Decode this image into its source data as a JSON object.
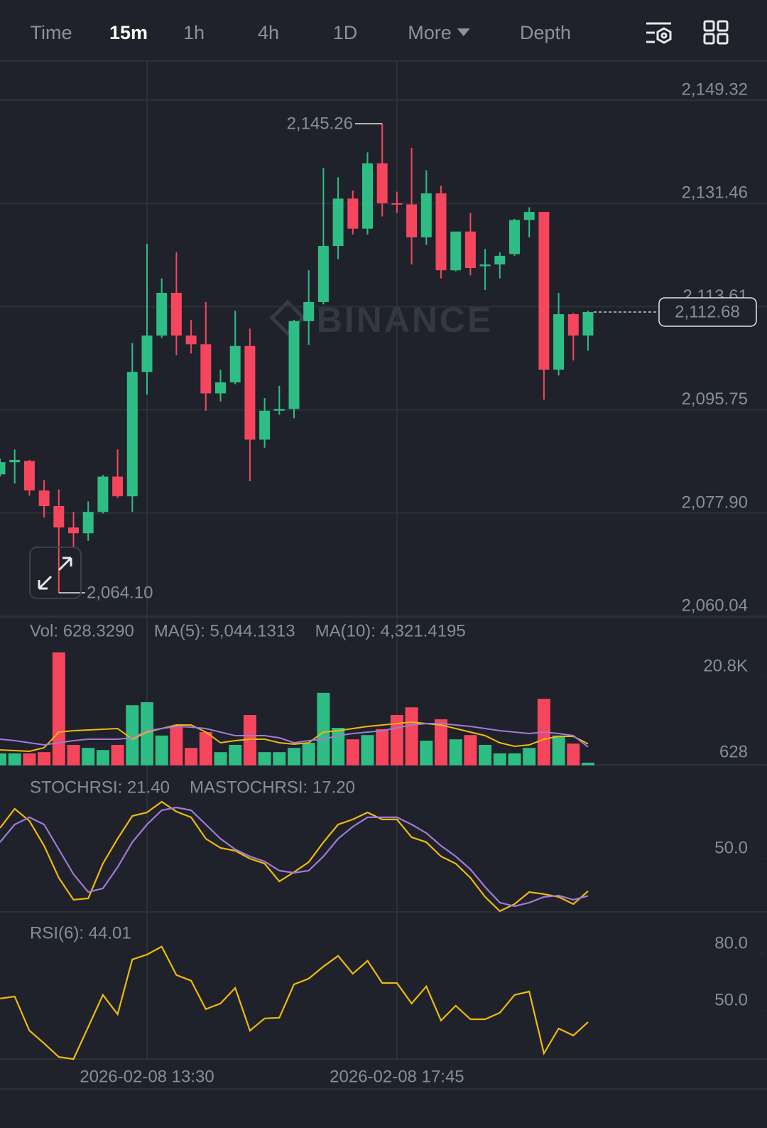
{
  "header": {
    "tabs": [
      "Time",
      "15m",
      "1h",
      "4h",
      "1D",
      "More",
      "Depth"
    ],
    "active_tab": "15m"
  },
  "chart_data": [
    {
      "type": "candlestick",
      "categories": [
        null,
        null,
        null,
        null,
        null,
        null,
        null,
        null,
        null,
        null,
        "2026-02-08 13:30",
        null,
        null,
        null,
        null,
        null,
        null,
        null,
        null,
        null,
        null,
        null,
        null,
        null,
        null,
        null,
        null,
        "2026-02-08 17:45",
        null,
        null,
        null,
        null,
        null,
        null,
        null,
        null,
        null,
        null,
        null,
        null,
        null
      ],
      "open": [
        2084.6,
        2086.7,
        2086.9,
        2081.8,
        2079.1,
        2075.4,
        2074.4,
        2078.1,
        2084.2,
        2080.8,
        2102.3,
        2108.6,
        2116.0,
        2108.6,
        2107.1,
        2098.6,
        2100.5,
        2106.8,
        2090.6,
        2095.6,
        2095.9,
        2111.1,
        2114.4,
        2124.1,
        2132.3,
        2127.1,
        2138.4,
        2131.5,
        2131.3,
        2125.6,
        2133.2,
        2119.9,
        2126.6,
        2120.6,
        2120.9,
        2122.7,
        2128.6,
        2130.0,
        2102.7,
        2112.3,
        2108.6
      ],
      "high": [
        2087.3,
        2088.9,
        2087.1,
        2083.6,
        2082.0,
        2078.1,
        2079.9,
        2084.5,
        2088.9,
        2107.3,
        2124.5,
        2118.5,
        2123.0,
        2111.3,
        2114.4,
        2102.7,
        2112.9,
        2109.8,
        2097.8,
        2099.9,
        2111.3,
        2119.9,
        2137.6,
        2136.0,
        2133.7,
        2140.3,
        2145.26,
        2133.5,
        2141.1,
        2137.2,
        2134.5,
        2126.6,
        2129.8,
        2123.6,
        2123.0,
        2128.8,
        2130.8,
        2130.0,
        2116.0,
        2112.5,
        2112.9
      ],
      "low": [
        2084.2,
        2083.0,
        2080.9,
        2077.1,
        2064.1,
        2071.9,
        2073.1,
        2077.8,
        2080.5,
        2078.1,
        2098.4,
        2108.2,
        2105.2,
        2105.5,
        2095.6,
        2097.2,
        2100.2,
        2083.4,
        2089.2,
        2094.9,
        2094.3,
        2107.0,
        2114.0,
        2121.8,
        2126.1,
        2126.1,
        2129.2,
        2129.8,
        2120.9,
        2124.3,
        2118.5,
        2119.7,
        2119.0,
        2116.5,
        2118.5,
        2122.4,
        2125.6,
        2097.5,
        2101.7,
        2104.3,
        2106.0
      ],
      "close": [
        2086.7,
        2087.1,
        2081.8,
        2079.1,
        2075.4,
        2074.4,
        2078.1,
        2084.2,
        2080.8,
        2102.3,
        2108.6,
        2116.0,
        2108.6,
        2107.1,
        2098.6,
        2100.5,
        2106.8,
        2090.6,
        2095.6,
        2095.9,
        2111.1,
        2114.4,
        2124.1,
        2132.3,
        2127.1,
        2138.4,
        2131.5,
        2131.3,
        2125.6,
        2133.2,
        2119.9,
        2126.6,
        2120.3,
        2120.9,
        2122.4,
        2128.6,
        2130.0,
        2102.7,
        2112.3,
        2108.6,
        2112.68
      ],
      "up_color": "#2ebd85",
      "down_color": "#f6465d",
      "ylim": [
        2059.92,
        2155.96
      ],
      "yticks": [
        {
          "value": 2149.32,
          "label": "2,149.32"
        },
        {
          "value": 2131.46,
          "label": "2,131.46"
        },
        {
          "value": 2113.61,
          "label": "2,113.61"
        },
        {
          "value": 2095.75,
          "label": "2,095.75"
        },
        {
          "value": 2077.9,
          "label": "2,077.90"
        },
        {
          "value": 2060.04,
          "label": "2,060.04"
        }
      ],
      "grid": true,
      "max_label": "2,145.26",
      "min_label": "2,064.10",
      "last_label": "2,112.68",
      "watermark": "BINANCE"
    },
    {
      "type": "bar",
      "legend": "Vol: 628.3290",
      "values": [
        2800,
        2800,
        2800,
        3100,
        26500,
        4800,
        4100,
        3600,
        4800,
        14100,
        14800,
        7000,
        9100,
        4100,
        7800,
        3100,
        4800,
        11800,
        3100,
        3100,
        4100,
        5300,
        17000,
        8800,
        6100,
        7100,
        8500,
        11800,
        13600,
        5800,
        10800,
        6100,
        7100,
        4800,
        2800,
        2800,
        4100,
        15600,
        7000,
        5100,
        628.329
      ],
      "up_color": "#2ebd85",
      "down_color": "#f6465d",
      "series": [
        {
          "name": "MA(5): 5,044.1313",
          "color": "#f0b90b",
          "values": [
            3630,
            3470,
            3300,
            4130,
            7800,
            8130,
            8300,
            8470,
            8630,
            6130,
            7800,
            8630,
            9470,
            9470,
            7800,
            5300,
            5800,
            6130,
            6130,
            5300,
            4970,
            5300,
            7800,
            8130,
            8630,
            9130,
            9470,
            9800,
            10130,
            9800,
            9470,
            8630,
            7800,
            6970,
            5300,
            4470,
            4800,
            6130,
            6800,
            6800,
            5044.1313
          ]
        },
        {
          "name": "MA(10): 4,321.4195",
          "color": "#9f7ad8",
          "values": [
            6130,
            5800,
            5300,
            4800,
            5300,
            5800,
            6130,
            6130,
            6130,
            6470,
            8130,
            8630,
            9130,
            8970,
            8630,
            7800,
            6970,
            6970,
            6970,
            6470,
            5300,
            5800,
            6130,
            6970,
            7470,
            7800,
            8130,
            8800,
            9470,
            9800,
            9800,
            9470,
            9130,
            8630,
            8130,
            7800,
            7470,
            7800,
            7470,
            6970,
            4321.4195
          ]
        }
      ],
      "ylim": [
        0,
        29470
      ],
      "yticks": [
        {
          "value": 20800,
          "label": "20.8K"
        },
        628
      ]
    },
    {
      "type": "line",
      "series": [
        {
          "name": "STOCHRSI: 21.40",
          "color": "#f0b90b",
          "values": [
            76.9,
            93.8,
            83.1,
            61.3,
            33.1,
            13.8,
            15.0,
            45.6,
            67.5,
            87.5,
            90.6,
            100.0,
            91.3,
            86.3,
            67.5,
            59.4,
            56.9,
            50.0,
            45.6,
            30.0,
            38.1,
            46.9,
            64.4,
            80.0,
            84.4,
            90.6,
            84.4,
            84.4,
            68.8,
            64.4,
            51.9,
            45.6,
            33.1,
            16.3,
            3.8,
            10.0,
            20.6,
            18.8,
            16.3,
            10.0,
            21.4
          ]
        },
        {
          "name": "MASTOCHRSI: 17.20",
          "color": "#9f7ad8",
          "values": [
            64.4,
            80.0,
            86.3,
            80.0,
            58.1,
            36.3,
            20.6,
            23.8,
            42.5,
            64.4,
            80.0,
            92.5,
            95.0,
            92.5,
            80.0,
            67.5,
            58.1,
            51.9,
            47.5,
            39.4,
            37.5,
            39.4,
            51.9,
            67.5,
            78.1,
            86.3,
            86.3,
            86.3,
            80.0,
            72.5,
            61.3,
            51.9,
            40.6,
            25.0,
            11.3,
            8.1,
            11.3,
            16.3,
            17.5,
            13.8,
            17.2
          ]
        }
      ],
      "ylim": [
        3.1,
        120.6
      ],
      "yticks": [
        {
          "value": 50,
          "label": "50.0"
        }
      ]
    },
    {
      "type": "line",
      "series": [
        {
          "name": "RSI(6): 44.01",
          "color": "#f0b90b",
          "values": [
            56.4,
            57.5,
            39.5,
            32.8,
            25.6,
            24.5,
            41.4,
            58.3,
            48.1,
            77.0,
            79.6,
            83.8,
            68.8,
            65.8,
            50.8,
            53.8,
            62.0,
            39.5,
            45.9,
            46.3,
            63.9,
            66.9,
            73.3,
            78.9,
            69.5,
            76.3,
            64.6,
            64.6,
            53.8,
            62.8,
            44.8,
            52.6,
            45.5,
            45.5,
            48.9,
            58.3,
            60.1,
            27.5,
            40.6,
            36.9,
            44.01
          ]
        }
      ],
      "ylim": [
        24.5,
        95.7
      ],
      "yticks": [
        {
          "value": 80,
          "label": "80.0"
        },
        {
          "value": 50,
          "label": "50.0"
        }
      ]
    }
  ]
}
